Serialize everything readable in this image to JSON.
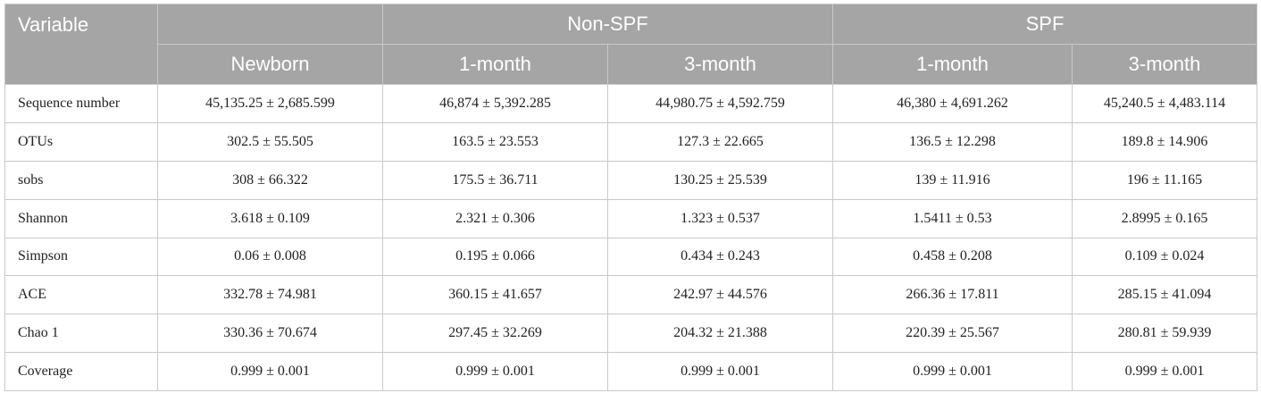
{
  "header": {
    "variable": "Variable",
    "group_non_spf": "Non-SPF",
    "group_spf": "SPF",
    "columns": [
      "Newborn",
      "1-month",
      "3-month",
      "1-month",
      "3-month"
    ]
  },
  "rows": [
    {
      "label": "Sequence number",
      "values": [
        "45,135.25 ± 2,685.599",
        "46,874 ± 5,392.285",
        "44,980.75 ± 4,592.759",
        "46,380 ± 4,691.262",
        "45,240.5 ± 4,483.114"
      ]
    },
    {
      "label": "OTUs",
      "values": [
        "302.5 ± 55.505",
        "163.5 ± 23.553",
        "127.3 ± 22.665",
        "136.5 ± 12.298",
        "189.8 ± 14.906"
      ]
    },
    {
      "label": "sobs",
      "values": [
        "308 ± 66.322",
        "175.5 ± 36.711",
        "130.25 ± 25.539",
        "139 ± 11.916",
        "196 ± 11.165"
      ]
    },
    {
      "label": "Shannon",
      "values": [
        "3.618 ± 0.109",
        "2.321 ± 0.306",
        "1.323 ± 0.537",
        "1.5411 ± 0.53",
        "2.8995 ± 0.165"
      ]
    },
    {
      "label": "Simpson",
      "values": [
        "0.06 ± 0.008",
        "0.195 ± 0.066",
        "0.434 ± 0.243",
        "0.458 ± 0.208",
        "0.109 ± 0.024"
      ]
    },
    {
      "label": "ACE",
      "values": [
        "332.78 ± 74.981",
        "360.15 ± 41.657",
        "242.97 ± 44.576",
        "266.36 ± 17.811",
        "285.15 ± 41.094"
      ]
    },
    {
      "label": "Chao 1",
      "values": [
        "330.36 ± 70.674",
        "297.45 ± 32.269",
        "204.32 ± 21.388",
        "220.39 ± 25.567",
        "280.81 ± 59.939"
      ]
    },
    {
      "label": "Coverage",
      "values": [
        "0.999 ± 0.001",
        "0.999 ± 0.001",
        "0.999 ± 0.001",
        "0.999 ± 0.001",
        "0.999 ± 0.001"
      ]
    }
  ],
  "colors": {
    "header_bg": "#a5a5a5",
    "header_text": "#ffffff",
    "border": "#c9c9c9"
  }
}
